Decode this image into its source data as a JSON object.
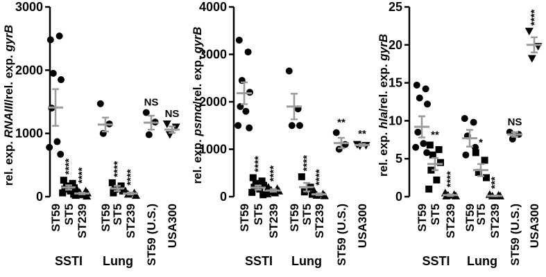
{
  "chart_data": [
    {
      "type": "scatter",
      "ylabel_prefix": "rel. exp. ",
      "ylabel_gene": "RNAIII",
      "ylabel_suffix": "/rel. exp. ",
      "ylabel_ref": "gyrB",
      "ylim": [
        0,
        3000
      ],
      "yticks": [
        "0",
        "1000",
        "2000",
        "3000"
      ],
      "yticks_values": [
        0,
        1000,
        2000,
        3000
      ],
      "categories": [
        "ST59",
        "ST5",
        "ST239",
        "ST59",
        "ST5",
        "ST239",
        "ST59 (U.S.)",
        "USA300"
      ],
      "groups": [
        {
          "label": "SSTI",
          "span": [
            0,
            2
          ]
        },
        {
          "label": "Lung",
          "span": [
            3,
            5
          ]
        }
      ],
      "series": [
        {
          "marker": "circle",
          "values": [
            2480,
            2540,
            1950,
            1850,
            1400,
            870,
            780,
            670
          ],
          "mean": 1410,
          "err": 290
        },
        {
          "marker": "square",
          "values": [
            260,
            210,
            170,
            140,
            120,
            90,
            60,
            40
          ],
          "mean": 145,
          "err": 35
        },
        {
          "marker": "triangle-up",
          "values": [
            120,
            90,
            70,
            60,
            40,
            30,
            20,
            10
          ],
          "mean": 50,
          "err": 12
        },
        {
          "marker": "circle",
          "values": [
            1470,
            1150,
            1000
          ],
          "mean": 1140,
          "err": 110
        },
        {
          "marker": "square",
          "values": [
            220,
            170,
            120,
            90,
            60
          ],
          "mean": 130,
          "err": 40
        },
        {
          "marker": "triangle-up",
          "values": [
            90,
            60,
            40,
            20
          ],
          "mean": 50,
          "err": 15
        },
        {
          "marker": "circle",
          "values": [
            1330,
            1180,
            980
          ],
          "mean": 1170,
          "err": 110
        },
        {
          "marker": "triangle-down",
          "values": [
            1150,
            1100,
            980
          ],
          "mean": 1060,
          "err": 50
        }
      ],
      "annotations": [
        "",
        "****",
        "****",
        "",
        "****",
        "****",
        "NS",
        "NS"
      ]
    },
    {
      "type": "scatter",
      "ylabel_prefix": "rel. exp. ",
      "ylabel_gene": "psmα",
      "ylabel_suffix": "/rel. exp. ",
      "ylabel_ref": "gyrB",
      "ylim": [
        0,
        4000
      ],
      "yticks": [
        "0",
        "1000",
        "2000",
        "3000",
        "4000"
      ],
      "yticks_values": [
        0,
        1000,
        2000,
        3000,
        4000
      ],
      "categories": [
        "ST59",
        "ST5",
        "ST239",
        "ST59",
        "ST5",
        "ST239",
        "ST59 (U.S.)",
        "USA300"
      ],
      "groups": [
        {
          "label": "SSTI",
          "span": [
            0,
            2
          ]
        },
        {
          "label": "Lung",
          "span": [
            3,
            5
          ]
        }
      ],
      "series": [
        {
          "marker": "circle",
          "values": [
            3300,
            3050,
            2450,
            2200,
            1900,
            1800,
            1500,
            1450
          ],
          "mean": 2180,
          "err": 230
        },
        {
          "marker": "square",
          "values": [
            400,
            330,
            280,
            240,
            200,
            160,
            90,
            40
          ],
          "mean": 190,
          "err": 45
        },
        {
          "marker": "triangle-up",
          "values": [
            200,
            170,
            140,
            120,
            100,
            80,
            60
          ],
          "mean": 130,
          "err": 25
        },
        {
          "marker": "circle",
          "values": [
            2650,
            1850,
            1500,
            1500
          ],
          "mean": 1900,
          "err": 270
        },
        {
          "marker": "square",
          "values": [
            420,
            200,
            100,
            50
          ],
          "mean": 200,
          "err": 90
        },
        {
          "marker": "triangle-up",
          "values": [
            120,
            60,
            30,
            20
          ],
          "mean": 50,
          "err": 20
        },
        {
          "marker": "circle",
          "values": [
            1350,
            1100,
            1000
          ],
          "mean": 1130,
          "err": 110
        },
        {
          "marker": "triangle-down",
          "values": [
            1100,
            1080,
            1070
          ],
          "mean": 1090,
          "err": 20
        }
      ],
      "annotations": [
        "",
        "****",
        "****",
        "",
        "****",
        "****",
        "**",
        "**"
      ]
    },
    {
      "type": "scatter",
      "ylabel_prefix": "rel. exp. ",
      "ylabel_gene": "hla",
      "ylabel_suffix": "/rel. exp. ",
      "ylabel_ref": "gyrB",
      "ylim": [
        0,
        25
      ],
      "yticks": [
        "0",
        "5",
        "10",
        "15",
        "20",
        "25"
      ],
      "yticks_values": [
        0,
        5,
        10,
        15,
        20,
        25
      ],
      "categories": [
        "ST59",
        "ST5",
        "ST239",
        "ST59",
        "ST5",
        "ST239",
        "ST59 (U.S.)",
        "USA300"
      ],
      "groups": [
        {
          "label": "SSTI",
          "span": [
            0,
            2
          ]
        },
        {
          "label": "Lung",
          "span": [
            3,
            5
          ]
        }
      ],
      "series": [
        {
          "marker": "circle",
          "values": [
            14.7,
            14.2,
            13.0,
            12.2,
            8.5,
            7.0,
            6.5,
            5.8
          ],
          "mean": 9.2,
          "err": 1.4
        },
        {
          "marker": "square",
          "values": [
            6.8,
            6.2,
            5.5,
            4.5,
            3.5,
            2.2,
            1.0
          ],
          "mean": 4.3,
          "err": 0.8
        },
        {
          "marker": "triangle-up",
          "values": [
            0.5,
            0.3,
            0.2,
            0.1,
            0.1
          ],
          "mean": 0.2,
          "err": 0.1
        },
        {
          "marker": "circle",
          "values": [
            10.3,
            9.8,
            8.0,
            6.5,
            5.5
          ],
          "mean": 7.7,
          "err": 1.1
        },
        {
          "marker": "square",
          "values": [
            5.8,
            4.8,
            3.2,
            2.5
          ],
          "mean": 3.5,
          "err": 0.8
        },
        {
          "marker": "triangle-up",
          "values": [
            0.3,
            0.2,
            0.1,
            0.1
          ],
          "mean": 0.1,
          "err": 0.05
        },
        {
          "marker": "circle",
          "values": [
            8.5,
            8.2,
            7.6
          ],
          "mean": 8.2,
          "err": 0.3
        },
        {
          "marker": "triangle-down",
          "values": [
            21.8,
            19.8,
            18.2
          ],
          "mean": 20.0,
          "err": 1.0
        }
      ],
      "annotations": [
        "",
        "**",
        "****",
        "",
        "*",
        "***",
        "NS",
        "****"
      ]
    }
  ]
}
